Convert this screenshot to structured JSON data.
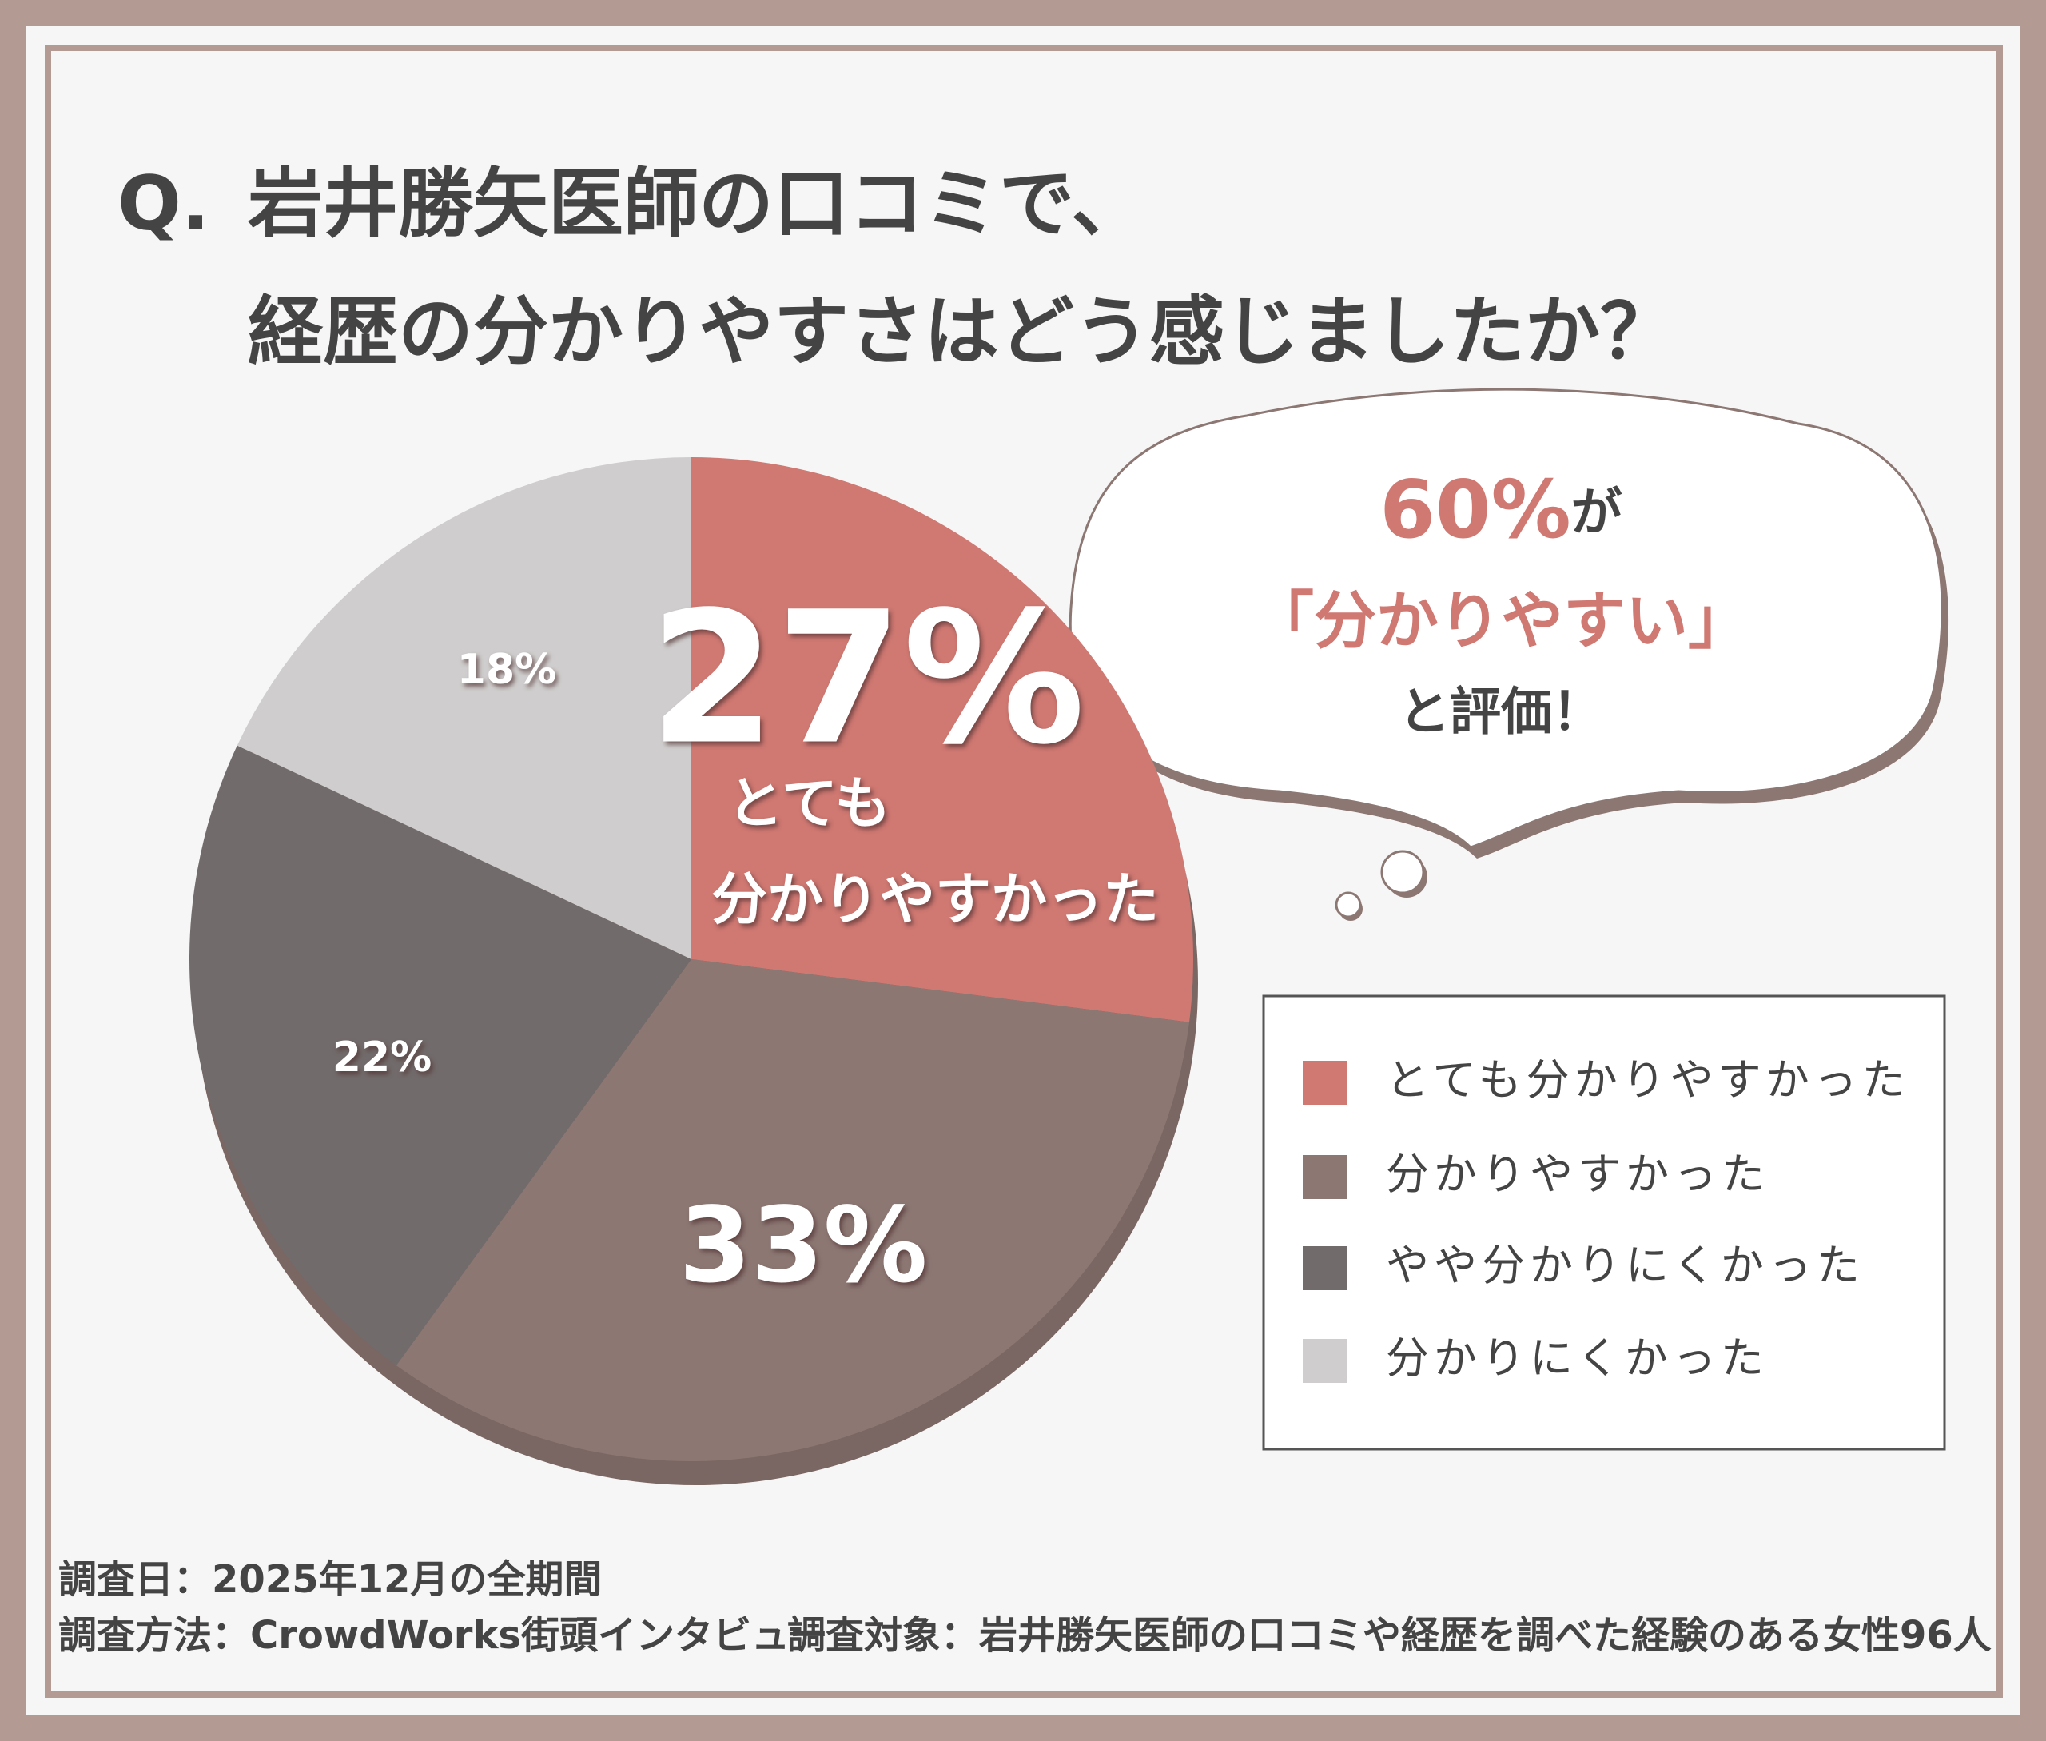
{
  "chart_data": {
    "type": "pie",
    "title_prefix": "Q.",
    "title": [
      "岩井勝矢医師の口コミで、",
      "経歴の分かりやすさはどう感じましたか？"
    ],
    "categories": [
      "とても分かりやすかった",
      "分かりやすかった",
      "やや分かりにくかった",
      "分かりにくかった"
    ],
    "values": [
      27,
      33,
      22,
      18
    ],
    "value_labels": [
      "27%",
      "33%",
      "22%",
      "18%"
    ],
    "colors": [
      "#d07872",
      "#8c7773",
      "#726b6b",
      "#cfcdcd"
    ],
    "slice_note": [
      "とても",
      "分かりやすかった"
    ],
    "bubble": {
      "highlight": "60%",
      "highlight_suffix": "が",
      "line2": "「分かりやすい」",
      "line3": "と評価！"
    },
    "footer": {
      "date": "調査日：2025年12月の全期間",
      "method": "調査方法：CrowdWorks街頭インタビュー",
      "target": "調査対象：岩井勝矢医師の口コミや経歴を調べた経験のある女性96人"
    }
  }
}
